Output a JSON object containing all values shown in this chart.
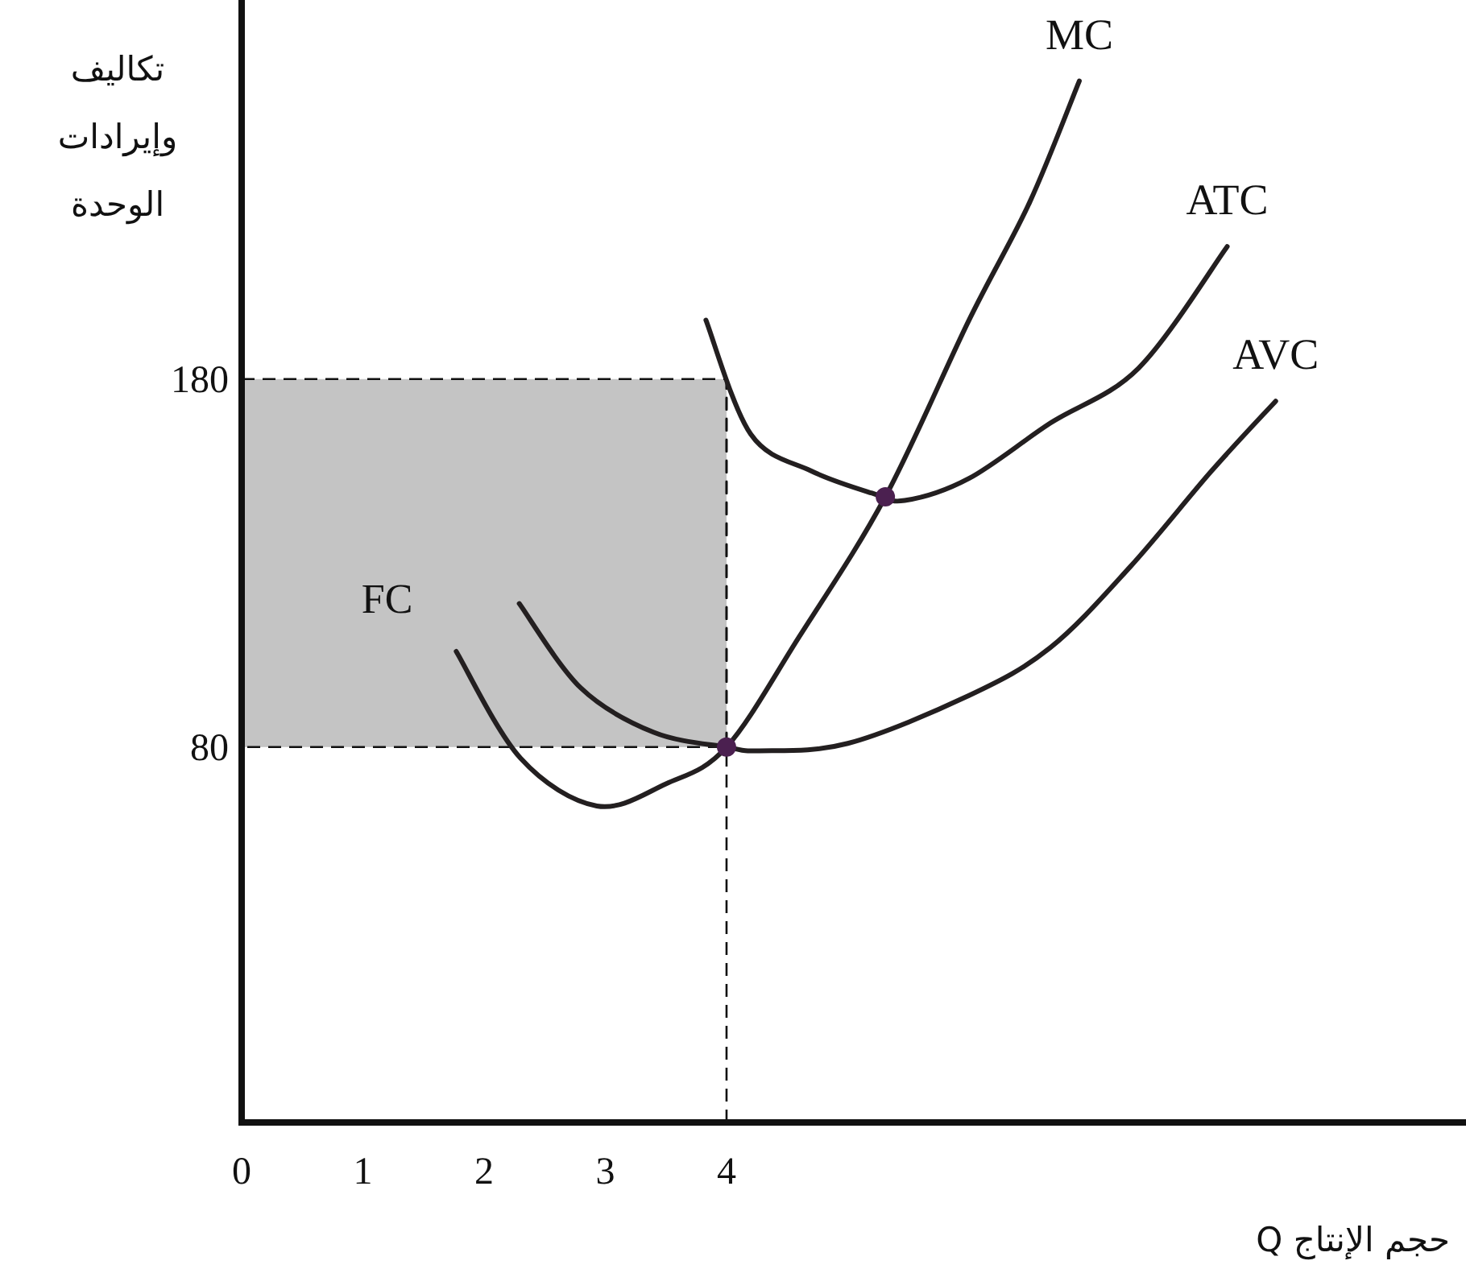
{
  "chart_data": {
    "type": "line",
    "xlabel": "حجم الإنتاج Q",
    "ylabel": "تكاليف وإيرادات الوحدة",
    "xlim": [
      0,
      10.1
    ],
    "ylim": [
      -22,
      283
    ],
    "xticks": [
      0,
      1,
      2,
      3,
      4
    ],
    "yticks": [
      80,
      180
    ],
    "grid": false,
    "line_style": "solid",
    "series": [
      {
        "name": "MC",
        "color": "#231f20",
        "x": [
          1.77,
          2.3,
          2.93,
          3.5,
          4,
          4.6,
          5.31,
          6.0,
          6.5,
          6.91
        ],
        "values": [
          106,
          77,
          64,
          70,
          80,
          110,
          148,
          196,
          228,
          261
        ]
      },
      {
        "name": "ATC",
        "color": "#231f20",
        "x": [
          3.83,
          4.2,
          4.7,
          5.2,
          5.47,
          6.0,
          6.67,
          7.4,
          8.13
        ],
        "values": [
          196,
          165,
          155,
          149,
          147,
          153,
          168,
          183,
          216
        ]
      },
      {
        "name": "AVC",
        "color": "#231f20",
        "x": [
          2.29,
          2.8,
          3.4,
          4,
          4.27,
          5.0,
          6.0,
          6.67,
          7.33,
          8.0,
          8.53
        ],
        "values": [
          119,
          96,
          84,
          80,
          79,
          81,
          94,
          107,
          129,
          155,
          174
        ]
      },
      {
        "type": "scatter",
        "marker": "circle",
        "color": "#4b2050",
        "x": [
          4,
          5.31
        ],
        "values": [
          80,
          148
        ]
      }
    ],
    "ref_lines": [
      {
        "axis": "x",
        "value": 4,
        "line_style": "dashed"
      }
    ],
    "bands": [
      {
        "axis": "y",
        "from": 80,
        "to": 180,
        "label": "FC",
        "color": "#c4c4c4"
      }
    ]
  }
}
